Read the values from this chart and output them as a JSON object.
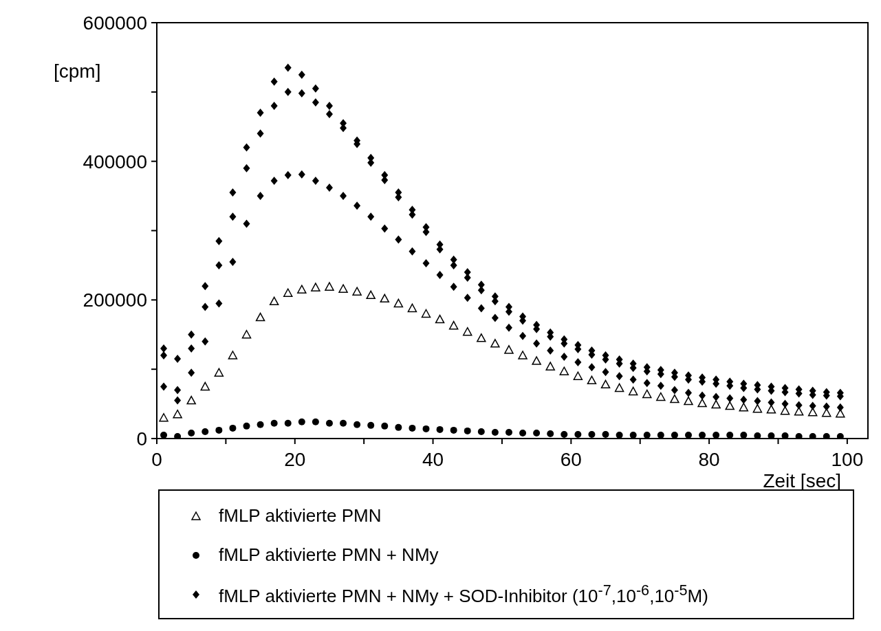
{
  "chart_data": {
    "type": "scatter",
    "xlabel": "Zeit [sec]",
    "ylabel": "[cpm]",
    "x": [
      1,
      3,
      5,
      7,
      9,
      11,
      13,
      15,
      17,
      19,
      21,
      23,
      25,
      27,
      29,
      31,
      33,
      35,
      37,
      39,
      41,
      43,
      45,
      47,
      49,
      51,
      53,
      55,
      57,
      59,
      61,
      63,
      65,
      67,
      69,
      71,
      73,
      75,
      77,
      79,
      81,
      83,
      85,
      87,
      89,
      91,
      93,
      95,
      97,
      99
    ],
    "series": [
      {
        "name": "fMLP aktivierte PMN",
        "color": "#000000",
        "marker": "triangle",
        "values": [
          30000,
          35000,
          55000,
          75000,
          95000,
          120000,
          150000,
          175000,
          198000,
          210000,
          215000,
          218000,
          219000,
          216000,
          212000,
          207000,
          202000,
          195000,
          188000,
          180000,
          172000,
          163000,
          154000,
          145000,
          137000,
          128000,
          120000,
          112000,
          104000,
          97000,
          90000,
          84000,
          78000,
          73000,
          68000,
          64000,
          60000,
          57000,
          54000,
          51000,
          49000,
          47000,
          45000,
          43000,
          42000,
          40000,
          39000,
          38000,
          37000,
          36000
        ]
      },
      {
        "name": "fMLP aktivierte PMN + NMy",
        "color": "#000000",
        "marker": "circle",
        "values": [
          5000,
          3000,
          8000,
          10000,
          12000,
          15000,
          18000,
          20000,
          22000,
          22000,
          24000,
          24000,
          22000,
          22000,
          20000,
          19000,
          18000,
          16000,
          15000,
          14000,
          13000,
          12000,
          11000,
          10000,
          9000,
          9000,
          8000,
          8000,
          7000,
          6000,
          6000,
          6000,
          6000,
          5000,
          5000,
          5000,
          5000,
          5000,
          5000,
          5000,
          5000,
          5000,
          5000,
          4000,
          4000,
          4000,
          3000,
          3000,
          3000,
          3000
        ]
      },
      {
        "name": "fMLP aktivierte PMN + NMy + SOD-Inhibitor (10$^{-7}$,10$^{-6}$,10$^{-5}$M)",
        "color": "#000000",
        "marker": "diamond",
        "values": [
          130000,
          115000,
          150000,
          220000,
          285000,
          355000,
          420000,
          470000,
          515000,
          535000,
          525000,
          505000,
          480000,
          455000,
          430000,
          405000,
          380000,
          355000,
          330000,
          305000,
          280000,
          258000,
          240000,
          222000,
          205000,
          190000,
          176000,
          164000,
          153000,
          143000,
          135000,
          127000,
          120000,
          114000,
          108000,
          103000,
          99000,
          95000,
          91000,
          88000,
          85000,
          82000,
          79000,
          77000,
          75000,
          73000,
          71000,
          69000,
          67000,
          66000
        ]
      },
      {
        "color": "#000000",
        "marker": "diamond",
        "values": [
          120000,
          70000,
          130000,
          190000,
          250000,
          320000,
          390000,
          440000,
          480000,
          500000,
          498000,
          485000,
          468000,
          448000,
          425000,
          398000,
          373000,
          348000,
          323000,
          298000,
          273000,
          250000,
          232000,
          214000,
          198000,
          183000,
          170000,
          158000,
          147000,
          137000,
          129000,
          121000,
          114000,
          108000,
          102000,
          97000,
          93000,
          89000,
          85000,
          82000,
          79000,
          76000,
          73000,
          71000,
          69000,
          67000,
          65000,
          63000,
          62000,
          61000
        ]
      },
      {
        "color": "#000000",
        "marker": "diamond",
        "values": [
          75000,
          55000,
          95000,
          140000,
          195000,
          255000,
          310000,
          350000,
          372000,
          380000,
          381000,
          372000,
          362000,
          350000,
          336000,
          320000,
          303000,
          287000,
          270000,
          253000,
          236000,
          219000,
          203000,
          188000,
          174000,
          160000,
          148000,
          137000,
          127000,
          118000,
          110000,
          103000,
          96000,
          90000,
          85000,
          80000,
          76000,
          70000,
          66000,
          62000,
          60000,
          58000,
          56000,
          54000,
          52000,
          50000,
          48000,
          47000,
          46000,
          45000
        ]
      }
    ],
    "xlim": [
      0,
      103
    ],
    "ylim": [
      0,
      600000
    ],
    "xticks": [
      0,
      {
        "value": 10,
        "label": null
      },
      20,
      {
        "value": 30,
        "label": null
      },
      40,
      {
        "value": 50,
        "label": null
      },
      60,
      {
        "value": 70,
        "label": null
      },
      80,
      {
        "value": 90,
        "label": null
      },
      100
    ],
    "yticks": [
      0,
      {
        "value": 100000,
        "label": null
      },
      200000,
      {
        "value": 300000,
        "label": null
      },
      400000,
      {
        "value": 500000,
        "label": null
      },
      600000
    ],
    "grid": false,
    "legend": "bottom"
  }
}
